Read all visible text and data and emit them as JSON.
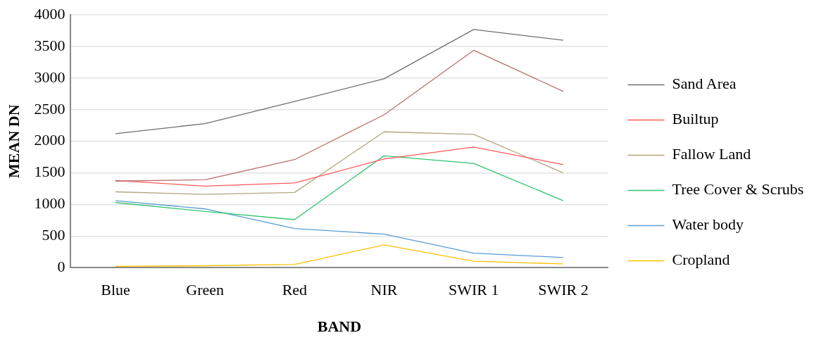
{
  "chart_data": {
    "type": "line",
    "xlabel": "BAND",
    "ylabel": "MEAN DN",
    "categories": [
      "Blue",
      "Green",
      "Red",
      "NIR",
      "SWIR 1",
      "SWIR 2"
    ],
    "series": [
      {
        "name": "Sand Area",
        "color": "#6f6f6f",
        "values": [
          2120,
          2280,
          2630,
          2990,
          3770,
          3600
        ]
      },
      {
        "color": "#b8706f",
        "values": [
          1370,
          1390,
          1710,
          2420,
          3440,
          2790
        ]
      },
      {
        "name": "Builtup",
        "color": "#ff5a5a",
        "values": [
          1380,
          1290,
          1340,
          1720,
          1910,
          1630
        ]
      },
      {
        "name": "Fallow Land",
        "color": "#b3a57e",
        "values": [
          1200,
          1160,
          1190,
          2150,
          2110,
          1500
        ]
      },
      {
        "name": "Tree Cover & Scrubs",
        "color": "#2fc46e",
        "values": [
          1030,
          890,
          760,
          1770,
          1650,
          1060
        ]
      },
      {
        "name": "Water body",
        "color": "#5b9bd5",
        "values": [
          1060,
          930,
          620,
          530,
          230,
          160
        ]
      },
      {
        "name": "Cropland",
        "color": "#ffc000",
        "values": [
          20,
          30,
          50,
          360,
          100,
          60
        ]
      }
    ],
    "ylim": [
      0,
      4000
    ],
    "yticks": [
      0,
      500,
      1000,
      1500,
      2000,
      2500,
      3000,
      3500,
      4000
    ],
    "grid": "y",
    "legend": "right",
    "marker": "none",
    "line_style": "solid"
  }
}
